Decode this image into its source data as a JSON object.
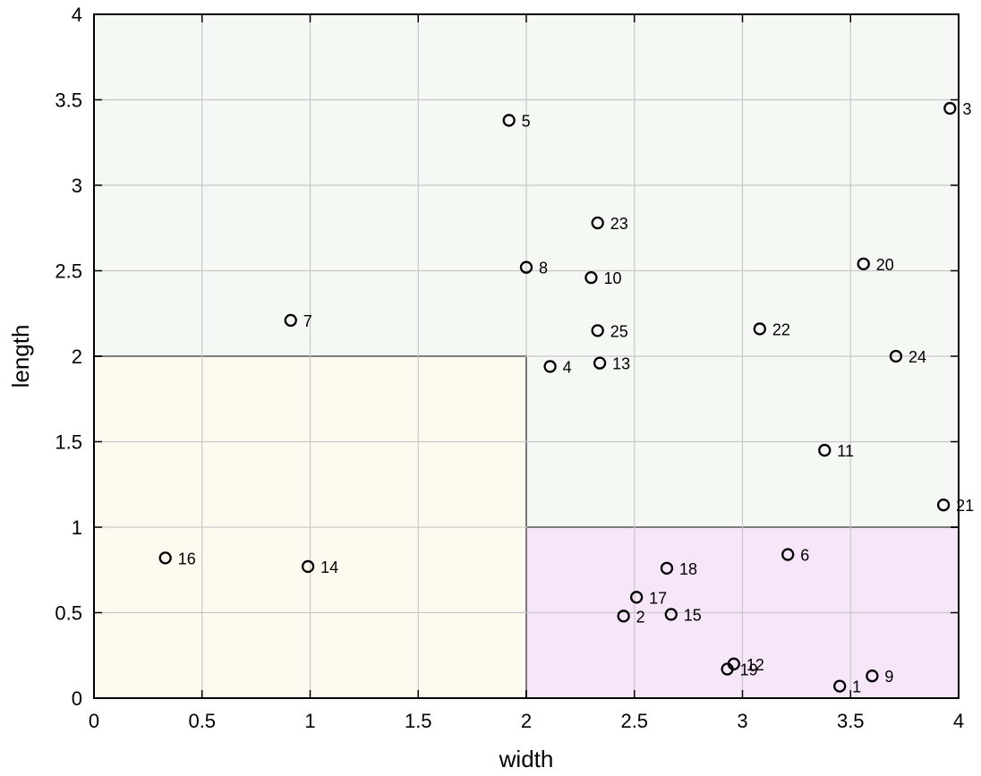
{
  "chart_data": {
    "type": "scatter",
    "title": "",
    "xlabel": "width",
    "ylabel": "length",
    "xlim": [
      0,
      4
    ],
    "ylim": [
      0,
      4
    ],
    "xticks": [
      0,
      0.5,
      1,
      1.5,
      2,
      2.5,
      3,
      3.5,
      4
    ],
    "xtick_labels": [
      "0",
      "0.5",
      "1",
      "1.5",
      "2",
      "2.5",
      "3",
      "3.5",
      "4"
    ],
    "yticks": [
      0,
      0.5,
      1,
      1.5,
      2,
      2.5,
      3,
      3.5,
      4
    ],
    "ytick_labels": [
      "0",
      "0.5",
      "1",
      "1.5",
      "2",
      "2.5",
      "3",
      "3.5",
      "4"
    ],
    "grid": true,
    "regions": [
      {
        "x": [
          0,
          4
        ],
        "y": [
          0,
          4
        ],
        "color": "#f4f9f3"
      },
      {
        "x": [
          0,
          2
        ],
        "y": [
          0,
          2
        ],
        "color": "#fdfbf0"
      },
      {
        "x": [
          2,
          4
        ],
        "y": [
          0,
          1
        ],
        "color": "#f7e6f9"
      }
    ],
    "points": [
      {
        "label": "1",
        "x": 3.45,
        "y": 0.07
      },
      {
        "label": "2",
        "x": 2.45,
        "y": 0.48
      },
      {
        "label": "3",
        "x": 3.96,
        "y": 3.45
      },
      {
        "label": "4",
        "x": 2.11,
        "y": 1.94
      },
      {
        "label": "5",
        "x": 1.92,
        "y": 3.38
      },
      {
        "label": "6",
        "x": 3.21,
        "y": 0.84
      },
      {
        "label": "7",
        "x": 0.91,
        "y": 2.21
      },
      {
        "label": "8",
        "x": 2.0,
        "y": 2.52
      },
      {
        "label": "9",
        "x": 3.6,
        "y": 0.13
      },
      {
        "label": "10",
        "x": 2.3,
        "y": 2.46
      },
      {
        "label": "11",
        "x": 3.38,
        "y": 1.45
      },
      {
        "label": "12",
        "x": 2.96,
        "y": 0.2
      },
      {
        "label": "13",
        "x": 2.34,
        "y": 1.96
      },
      {
        "label": "14",
        "x": 0.99,
        "y": 0.77
      },
      {
        "label": "15",
        "x": 2.67,
        "y": 0.49
      },
      {
        "label": "16",
        "x": 0.33,
        "y": 0.82
      },
      {
        "label": "17",
        "x": 2.51,
        "y": 0.59
      },
      {
        "label": "18",
        "x": 2.65,
        "y": 0.76
      },
      {
        "label": "19",
        "x": 2.93,
        "y": 0.17
      },
      {
        "label": "20",
        "x": 3.56,
        "y": 2.54
      },
      {
        "label": "21",
        "x": 3.93,
        "y": 1.13
      },
      {
        "label": "22",
        "x": 3.08,
        "y": 2.16
      },
      {
        "label": "23",
        "x": 2.33,
        "y": 2.78
      },
      {
        "label": "24",
        "x": 3.71,
        "y": 2.0
      },
      {
        "label": "25",
        "x": 2.33,
        "y": 2.15
      }
    ]
  }
}
